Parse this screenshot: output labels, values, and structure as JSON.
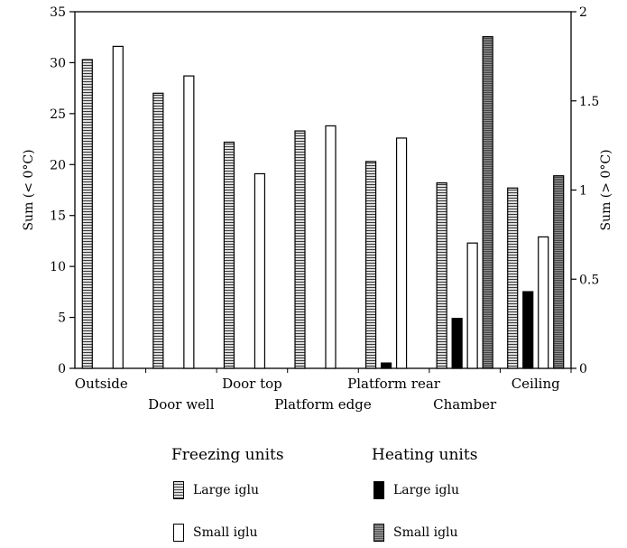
{
  "chart_data": {
    "type": "bar",
    "categories": [
      "Outside",
      "Door well",
      "Door top",
      "Platform edge",
      "Platform rear",
      "Chamber",
      "Ceiling"
    ],
    "y_left": {
      "label": "Sum (< 0°C)",
      "lim": [
        0,
        35
      ],
      "ticks": [
        "0",
        "5",
        "10",
        "15",
        "20",
        "25",
        "30",
        "35"
      ]
    },
    "y_right": {
      "label": "Sum (> 0°C)",
      "lim": [
        0,
        2
      ],
      "ticks": [
        "0",
        "0.5",
        "1",
        "1.5",
        "2"
      ]
    },
    "series": [
      {
        "name": "Large iglu",
        "group": "Freezing units",
        "axis": "left",
        "values": [
          30.3,
          27.0,
          22.2,
          23.3,
          20.3,
          18.2,
          17.7
        ]
      },
      {
        "name": "Large iglu",
        "group": "Heating units",
        "axis": "right",
        "values": [
          0,
          0,
          0,
          0,
          0.03,
          0.28,
          0.43
        ]
      },
      {
        "name": "Small iglu",
        "group": "Freezing units",
        "axis": "left",
        "values": [
          31.6,
          28.7,
          19.1,
          23.8,
          22.6,
          12.3,
          12.9
        ]
      },
      {
        "name": "Small iglu",
        "group": "Heating units",
        "axis": "right",
        "values": [
          0,
          0,
          0,
          0,
          0,
          1.86,
          1.08
        ]
      }
    ],
    "legend": {
      "position": "bottom",
      "freezing_heading": "Freezing units",
      "heating_heading": "Heating units",
      "freezing_large": "Large iglu",
      "freezing_small": "Small iglu",
      "heating_large": "Large iglu",
      "heating_small": "Small iglu"
    },
    "grid": false
  },
  "colors": {
    "freeze_large": "hatched-gray",
    "freeze_small": "#ffffff",
    "heat_large": "#000000",
    "heat_small": "dark-stipple"
  }
}
